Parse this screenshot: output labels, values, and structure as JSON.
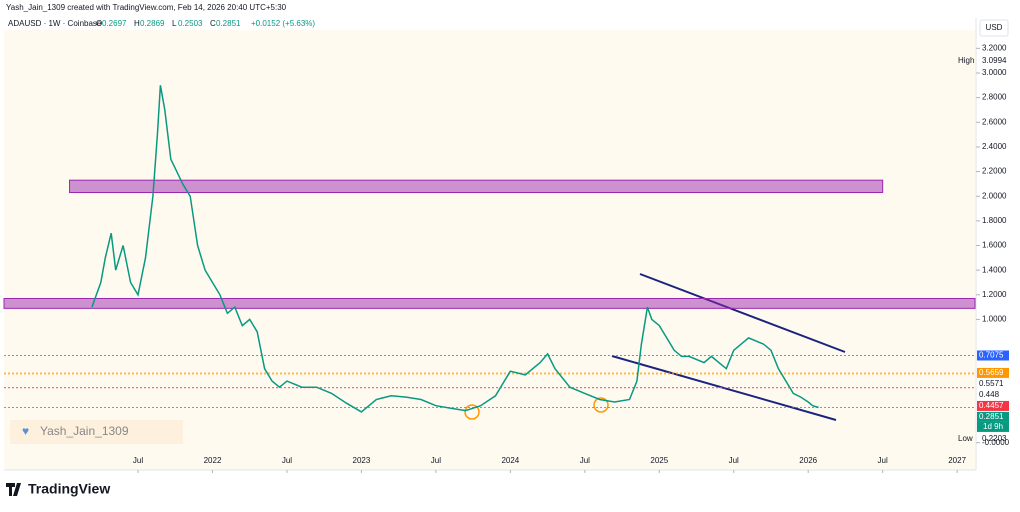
{
  "chart_data": {
    "type": "line",
    "credit": "Yash_Jain_1309 created with TradingView.com, Feb 14, 2026 20:40 UTC+5:30",
    "symbol": "ADAUSD · 1W · Coinbase",
    "ohlc": [
      {
        "label": "O",
        "value": 0.2697
      },
      {
        "label": "H",
        "value": 0.2869
      },
      {
        "label": "L",
        "value": 0.2503
      },
      {
        "label": "C",
        "value": 0.2851
      }
    ],
    "change": "+0.0152 (+5.63%)",
    "currency": "USD",
    "watermark": "Yash_Jain_1309",
    "brand": "TradingView",
    "high": {
      "label": "High",
      "value": 3.0994
    },
    "low": {
      "label": "Low",
      "value": 0.2203
    },
    "countdown": "1d 9h",
    "xlim": [
      2020.6,
      2027.12
    ],
    "ylim": [
      -0.1,
      3.3
    ],
    "xticks": [
      {
        "value": 2021.5,
        "label": "Jul"
      },
      2022,
      {
        "value": 2022.5,
        "label": "Jul"
      },
      2023,
      {
        "value": 2023.5,
        "label": "Jul"
      },
      2024,
      {
        "value": 2024.5,
        "label": "Jul"
      },
      2025,
      {
        "value": 2025.5,
        "label": "Jul"
      },
      2026,
      {
        "value": 2026.5,
        "label": "Jul"
      },
      2027
    ],
    "yticks": [
      {
        "value": 0,
        "label": "-0.0000"
      },
      {
        "value": 1,
        "label": "1.0000"
      },
      {
        "value": 1.2,
        "label": "1.2000"
      },
      {
        "value": 1.4,
        "label": "1.4000"
      },
      {
        "value": 1.6,
        "label": "1.6000"
      },
      {
        "value": 1.8,
        "label": "1.8000"
      },
      {
        "value": 2,
        "label": "2.0000"
      },
      {
        "value": 2.2,
        "label": "2.2000"
      },
      {
        "value": 2.4,
        "label": "2.4000"
      },
      {
        "value": 2.6,
        "label": "2.6000"
      },
      {
        "value": 2.8,
        "label": "2.8000"
      },
      {
        "value": 3,
        "label": "3.0000"
      },
      {
        "value": 3.2,
        "label": "3.2000"
      }
    ],
    "price_tags": [
      {
        "value": 0.7075,
        "color": "#2962ff"
      },
      {
        "value": 0.5659,
        "color": "#ff9800"
      },
      {
        "value": 0.5571,
        "color": "#ffffff"
      },
      {
        "value": 0.448,
        "color": "#ffffff"
      },
      {
        "value": 0.4457,
        "color": "#f23645"
      },
      {
        "value": 0.2851,
        "color": "#089981"
      }
    ],
    "zones": [
      {
        "from": 2.03,
        "to": 2.13,
        "start": 2021.04,
        "end": 2026.5
      },
      {
        "from": 1.09,
        "to": 1.17,
        "start": 2020.6,
        "end": 2027.12
      }
    ],
    "x": [
      2021.19,
      2021.25,
      2021.28,
      2021.32,
      2021.35,
      2021.4,
      2021.45,
      2021.5,
      2021.55,
      2021.6,
      2021.63,
      2021.65,
      2021.68,
      2021.72,
      2021.76,
      2021.8,
      2021.85,
      2021.9,
      2021.95,
      2022.0,
      2022.05,
      2022.1,
      2022.15,
      2022.2,
      2022.25,
      2022.3,
      2022.35,
      2022.4,
      2022.45,
      2022.5,
      2022.6,
      2022.7,
      2022.8,
      2022.9,
      2023.0,
      2023.1,
      2023.2,
      2023.3,
      2023.4,
      2023.5,
      2023.6,
      2023.7,
      2023.8,
      2023.9,
      2024.0,
      2024.1,
      2024.2,
      2024.25,
      2024.3,
      2024.4,
      2024.5,
      2024.6,
      2024.7,
      2024.8,
      2024.85,
      2024.88,
      2024.92,
      2024.95,
      2025.0,
      2025.1,
      2025.15,
      2025.2,
      2025.3,
      2025.35,
      2025.45,
      2025.5,
      2025.55,
      2025.6,
      2025.7,
      2025.75,
      2025.8,
      2025.85,
      2025.9,
      2025.95,
      2026.0,
      2026.03,
      2026.07
    ],
    "series": [
      {
        "name": "ADAUSD",
        "color": "#089981",
        "values": [
          1.1,
          1.3,
          1.5,
          1.7,
          1.4,
          1.6,
          1.3,
          1.2,
          1.5,
          2.0,
          2.5,
          2.9,
          2.7,
          2.3,
          2.2,
          2.1,
          2.0,
          1.6,
          1.4,
          1.3,
          1.2,
          1.05,
          1.1,
          0.95,
          1.0,
          0.9,
          0.6,
          0.5,
          0.45,
          0.5,
          0.45,
          0.45,
          0.4,
          0.32,
          0.25,
          0.35,
          0.38,
          0.37,
          0.35,
          0.3,
          0.28,
          0.26,
          0.3,
          0.38,
          0.58,
          0.55,
          0.65,
          0.72,
          0.6,
          0.45,
          0.4,
          0.35,
          0.33,
          0.35,
          0.5,
          0.8,
          1.1,
          1.0,
          0.95,
          0.75,
          0.7,
          0.7,
          0.65,
          0.7,
          0.6,
          0.75,
          0.8,
          0.85,
          0.8,
          0.75,
          0.6,
          0.5,
          0.4,
          0.37,
          0.33,
          0.3,
          0.2851
        ]
      }
    ]
  }
}
